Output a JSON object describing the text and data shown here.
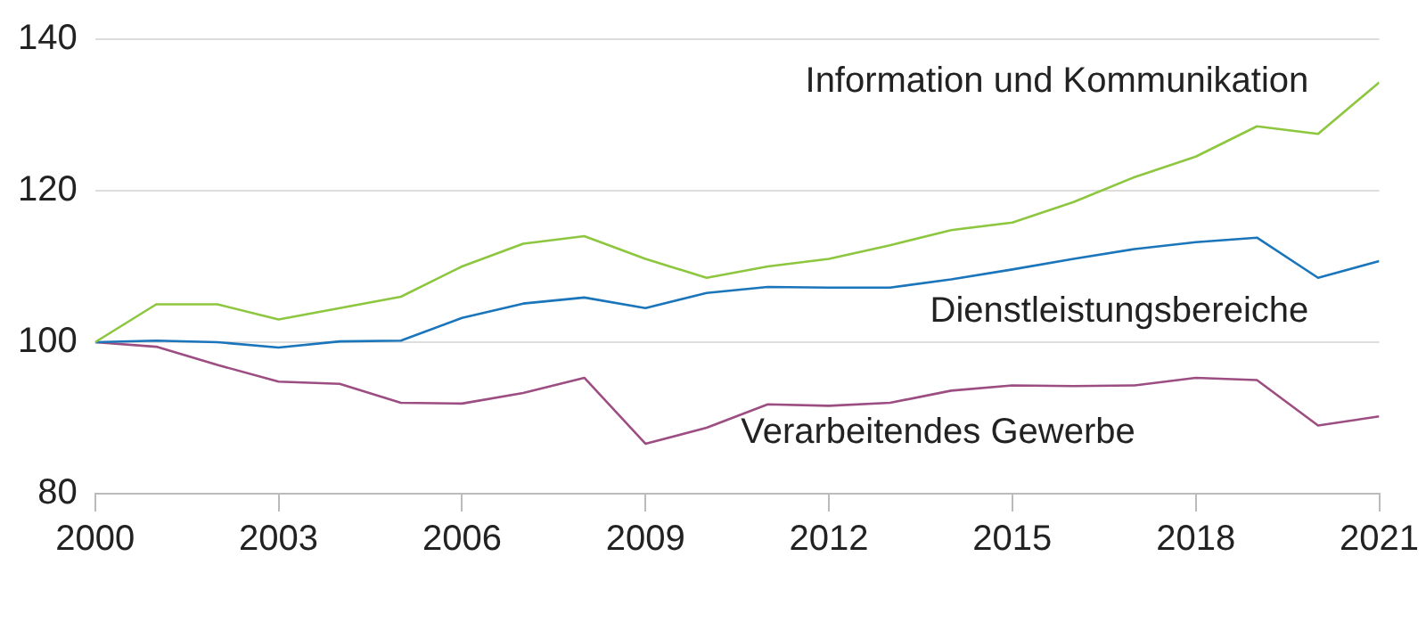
{
  "chart_data": {
    "type": "line",
    "x": [
      2000,
      2001,
      2002,
      2003,
      2004,
      2005,
      2006,
      2007,
      2008,
      2009,
      2010,
      2011,
      2012,
      2013,
      2014,
      2015,
      2016,
      2017,
      2018,
      2019,
      2020,
      2021
    ],
    "series": [
      {
        "name": "Information und Kommunikation",
        "color": "#8dc63f",
        "values": [
          100,
          105,
          105,
          103,
          104.5,
          106,
          110,
          113,
          114,
          111,
          108.5,
          110,
          111,
          112.8,
          114.8,
          115.8,
          118.5,
          121.8,
          124.5,
          128.5,
          127.5,
          134.3
        ]
      },
      {
        "name": "Dienstleistungsbereiche",
        "color": "#1a75bb",
        "values": [
          100,
          100.2,
          100,
          99.3,
          100.1,
          100.2,
          103.2,
          105.1,
          105.9,
          104.5,
          106.5,
          107.3,
          107.2,
          107.2,
          108.3,
          109.6,
          111,
          112.3,
          113.2,
          113.8,
          108.5,
          110.7
        ]
      },
      {
        "name": "Verarbeitendes Gewerbe",
        "color": "#9c4d82",
        "values": [
          100,
          99.4,
          97,
          94.8,
          94.5,
          92,
          91.9,
          93.3,
          95.3,
          86.6,
          88.7,
          91.8,
          91.6,
          92,
          93.6,
          94.3,
          94.2,
          94.3,
          95.3,
          95,
          89,
          90.2
        ]
      }
    ],
    "xlim": [
      2000,
      2021
    ],
    "xticks": [
      2000,
      2003,
      2006,
      2009,
      2012,
      2015,
      2018,
      2021
    ],
    "ylim": [
      80,
      140
    ],
    "yticks": [
      80,
      100,
      120,
      140
    ],
    "grid": "y",
    "legend": false,
    "marker": "none",
    "line_style": "solid"
  }
}
